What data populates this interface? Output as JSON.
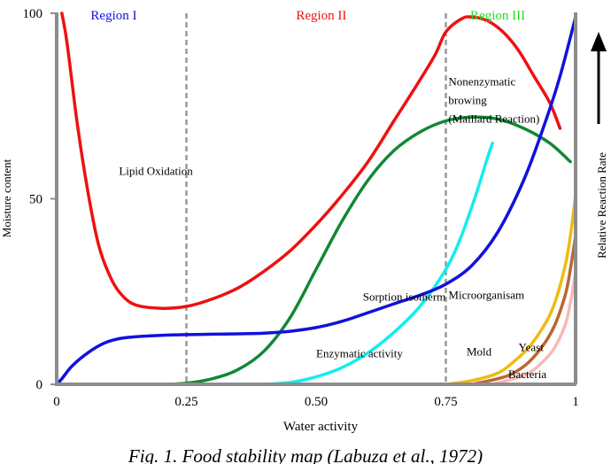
{
  "chart_data": {
    "type": "line",
    "caption": "Fig. 1. Food stability map (Labuza et al., 1972)",
    "xlabel": "Water activity",
    "ylabel": "Moisture content",
    "y2label": "Relative Reaction Rate",
    "xlim": [
      0,
      1
    ],
    "ylim": [
      0,
      100
    ],
    "xticks": [
      {
        "value": 0,
        "label": "0"
      },
      {
        "value": 0.25,
        "label": "0.25"
      },
      {
        "value": 0.5,
        "label": "0.50"
      },
      {
        "value": 0.75,
        "label": "0.75"
      },
      {
        "value": 1,
        "label": "1"
      }
    ],
    "yticks": [
      {
        "value": 0,
        "label": "0"
      },
      {
        "value": 50,
        "label": "50"
      },
      {
        "value": 100,
        "label": "100"
      }
    ],
    "region_boundaries": [
      0.25,
      0.75
    ],
    "regions": [
      {
        "label": "Region I",
        "x": 0.11,
        "color": "#1010ee"
      },
      {
        "label": "Region II",
        "x": 0.51,
        "color": "#ee1111"
      },
      {
        "label": "Region III",
        "x": 0.85,
        "color": "#22dd22"
      }
    ],
    "series": [
      {
        "name": "Lipid Oxidation",
        "color": "#ee1111",
        "points": [
          [
            0.01,
            100
          ],
          [
            0.02,
            92
          ],
          [
            0.04,
            70
          ],
          [
            0.06,
            52
          ],
          [
            0.08,
            38
          ],
          [
            0.1,
            30
          ],
          [
            0.12,
            25
          ],
          [
            0.15,
            21.5
          ],
          [
            0.2,
            20.5
          ],
          [
            0.25,
            21
          ],
          [
            0.3,
            23
          ],
          [
            0.35,
            26
          ],
          [
            0.4,
            30.5
          ],
          [
            0.45,
            36
          ],
          [
            0.5,
            43
          ],
          [
            0.55,
            51
          ],
          [
            0.6,
            60
          ],
          [
            0.65,
            71
          ],
          [
            0.7,
            82
          ],
          [
            0.73,
            89
          ],
          [
            0.75,
            95
          ],
          [
            0.78,
            98.5
          ],
          [
            0.8,
            99
          ],
          [
            0.83,
            98
          ],
          [
            0.86,
            95
          ],
          [
            0.89,
            90
          ],
          [
            0.92,
            83
          ],
          [
            0.95,
            76
          ],
          [
            0.97,
            69
          ]
        ]
      },
      {
        "name": "Sorption isotherm",
        "color": "#1111dd",
        "points": [
          [
            0,
            0
          ],
          [
            0.01,
            1.5
          ],
          [
            0.03,
            5
          ],
          [
            0.06,
            8.5
          ],
          [
            0.09,
            11
          ],
          [
            0.12,
            12.3
          ],
          [
            0.15,
            12.8
          ],
          [
            0.2,
            13.2
          ],
          [
            0.25,
            13.4
          ],
          [
            0.3,
            13.5
          ],
          [
            0.35,
            13.6
          ],
          [
            0.4,
            13.8
          ],
          [
            0.45,
            14.3
          ],
          [
            0.5,
            15.3
          ],
          [
            0.55,
            17
          ],
          [
            0.6,
            19.3
          ],
          [
            0.65,
            21.7
          ],
          [
            0.7,
            24
          ],
          [
            0.75,
            27
          ],
          [
            0.8,
            32
          ],
          [
            0.85,
            41
          ],
          [
            0.9,
            55
          ],
          [
            0.94,
            70
          ],
          [
            0.97,
            83
          ],
          [
            1.0,
            99
          ]
        ]
      },
      {
        "name": "Enzymatic activity",
        "color": "#118833",
        "points": [
          [
            0.2,
            0
          ],
          [
            0.25,
            0.3
          ],
          [
            0.3,
            1.5
          ],
          [
            0.35,
            4
          ],
          [
            0.4,
            9
          ],
          [
            0.45,
            18
          ],
          [
            0.5,
            31
          ],
          [
            0.55,
            44
          ],
          [
            0.6,
            55
          ],
          [
            0.65,
            63
          ],
          [
            0.7,
            68
          ],
          [
            0.75,
            71
          ],
          [
            0.8,
            72
          ],
          [
            0.85,
            71.5
          ],
          [
            0.9,
            69
          ],
          [
            0.95,
            65
          ],
          [
            0.99,
            60
          ]
        ]
      },
      {
        "name": "Microorganisam",
        "color": "#11eeee",
        "points": [
          [
            0.4,
            0
          ],
          [
            0.45,
            0.5
          ],
          [
            0.5,
            2
          ],
          [
            0.55,
            4.5
          ],
          [
            0.6,
            8.5
          ],
          [
            0.65,
            14
          ],
          [
            0.7,
            21
          ],
          [
            0.75,
            31
          ],
          [
            0.78,
            40
          ],
          [
            0.81,
            52
          ],
          [
            0.83,
            61
          ],
          [
            0.84,
            65
          ]
        ]
      },
      {
        "name": "Mold",
        "color": "#eebb11",
        "points": [
          [
            0.75,
            0
          ],
          [
            0.8,
            1
          ],
          [
            0.85,
            3
          ],
          [
            0.88,
            6
          ],
          [
            0.91,
            10
          ],
          [
            0.94,
            16
          ],
          [
            0.96,
            22
          ],
          [
            0.98,
            32
          ],
          [
            0.99,
            40
          ],
          [
            1.0,
            51
          ]
        ]
      },
      {
        "name": "Yeast",
        "color": "#bb6633",
        "points": [
          [
            0.8,
            0
          ],
          [
            0.85,
            1.5
          ],
          [
            0.88,
            3
          ],
          [
            0.91,
            6
          ],
          [
            0.94,
            11
          ],
          [
            0.96,
            16
          ],
          [
            0.98,
            24
          ],
          [
            0.99,
            31
          ],
          [
            1.0,
            40
          ]
        ]
      },
      {
        "name": "Bacteria",
        "color": "#f8b8b8",
        "points": [
          [
            0.84,
            0
          ],
          [
            0.88,
            1.5
          ],
          [
            0.91,
            3
          ],
          [
            0.94,
            6.5
          ],
          [
            0.96,
            10
          ],
          [
            0.98,
            16
          ],
          [
            0.99,
            22
          ],
          [
            1.0,
            30
          ]
        ]
      }
    ],
    "annotations": [
      {
        "text": "Lipid Oxidation",
        "x": 0.12,
        "y": 56.5
      },
      {
        "text": "Nonenzymatic",
        "x": 0.755,
        "y": 80.5
      },
      {
        "text": "browing",
        "x": 0.755,
        "y": 75.5
      },
      {
        "text": "(Maillard Reaction)",
        "x": 0.755,
        "y": 70.5
      },
      {
        "text": "Sorption isotherm",
        "x": 0.59,
        "y": 22.5
      },
      {
        "text": "Microorganisam",
        "x": 0.755,
        "y": 23
      },
      {
        "text": "Enzymatic activity",
        "x": 0.5,
        "y": 7.3
      },
      {
        "text": "Mold",
        "x": 0.79,
        "y": 7.8
      },
      {
        "text": "Yeast",
        "x": 0.89,
        "y": 9
      },
      {
        "text": "Bacteria",
        "x": 0.87,
        "y": 1.7
      }
    ]
  }
}
